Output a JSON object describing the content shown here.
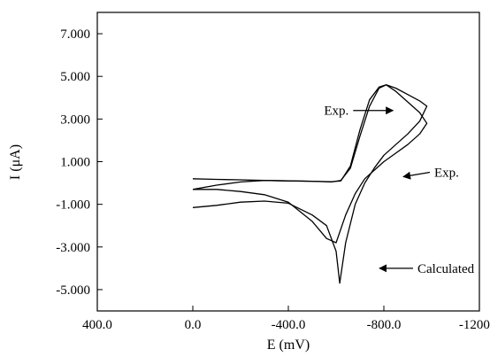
{
  "chart_data": {
    "type": "line",
    "title": "",
    "xlabel": "E (mV)",
    "ylabel": "I (μA)",
    "xlim": [
      400,
      -1200
    ],
    "ylim": [
      -6,
      8
    ],
    "x_axis_reversed": true,
    "grid": false,
    "x_ticks": [
      400,
      0,
      -400,
      -800,
      -1200
    ],
    "x_tick_labels": [
      "400.0",
      "0.0",
      "-400.0",
      "-800.0",
      "-1200.0"
    ],
    "y_ticks": [
      7,
      5,
      3,
      1,
      -1,
      -3,
      -5
    ],
    "y_tick_labels": [
      "7.000",
      "5.000",
      "3.000",
      "1.000",
      "-1.000",
      "-3.000",
      "-5.000"
    ],
    "series": [
      {
        "x": [
          0,
          -100,
          -200,
          -300,
          -400,
          -500,
          -580,
          -620,
          -660,
          -700,
          -740,
          -780,
          -810,
          -850,
          -900,
          -950,
          -980,
          -950,
          -900,
          -850,
          -800,
          -760,
          -720,
          -680,
          -640,
          -600,
          -560,
          -500,
          -400,
          -300,
          -200,
          -100,
          0
        ],
        "y": [
          0.2,
          0.17,
          0.15,
          0.12,
          0.1,
          0.08,
          0.06,
          0.1,
          0.8,
          2.5,
          3.9,
          4.5,
          4.6,
          4.3,
          3.8,
          3.3,
          2.8,
          2.3,
          1.8,
          1.4,
          1.0,
          0.6,
          0.2,
          -0.5,
          -1.5,
          -2.8,
          -2.6,
          -1.8,
          -0.9,
          -0.55,
          -0.4,
          -0.3,
          -0.3
        ]
      },
      {
        "x": [
          0,
          -100,
          -200,
          -300,
          -400,
          -500,
          -580,
          -620,
          -660,
          -700,
          -740,
          -780,
          -810,
          -850,
          -900,
          -950,
          -980,
          -950,
          -900,
          -850,
          -800,
          -760,
          -720,
          -680,
          -640,
          -615,
          -600,
          -560,
          -500,
          -400,
          -300,
          -200,
          -100,
          0
        ],
        "y": [
          -0.3,
          -0.1,
          0.05,
          0.12,
          0.1,
          0.08,
          0.05,
          0.12,
          0.7,
          2.2,
          3.6,
          4.45,
          4.6,
          4.45,
          4.15,
          3.85,
          3.6,
          2.9,
          2.3,
          1.8,
          1.3,
          0.7,
          0.0,
          -1.0,
          -2.8,
          -4.7,
          -3.2,
          -2.0,
          -1.5,
          -0.95,
          -0.85,
          -0.9,
          -1.05,
          -1.15
        ]
      }
    ],
    "annotations": [
      {
        "text": "Exp.",
        "x": -690,
        "y": 3.4
      },
      {
        "text": "Exp.",
        "x": -900,
        "y": 0.5
      },
      {
        "text": "Calculated",
        "x": -800,
        "y": -4.0
      }
    ]
  }
}
